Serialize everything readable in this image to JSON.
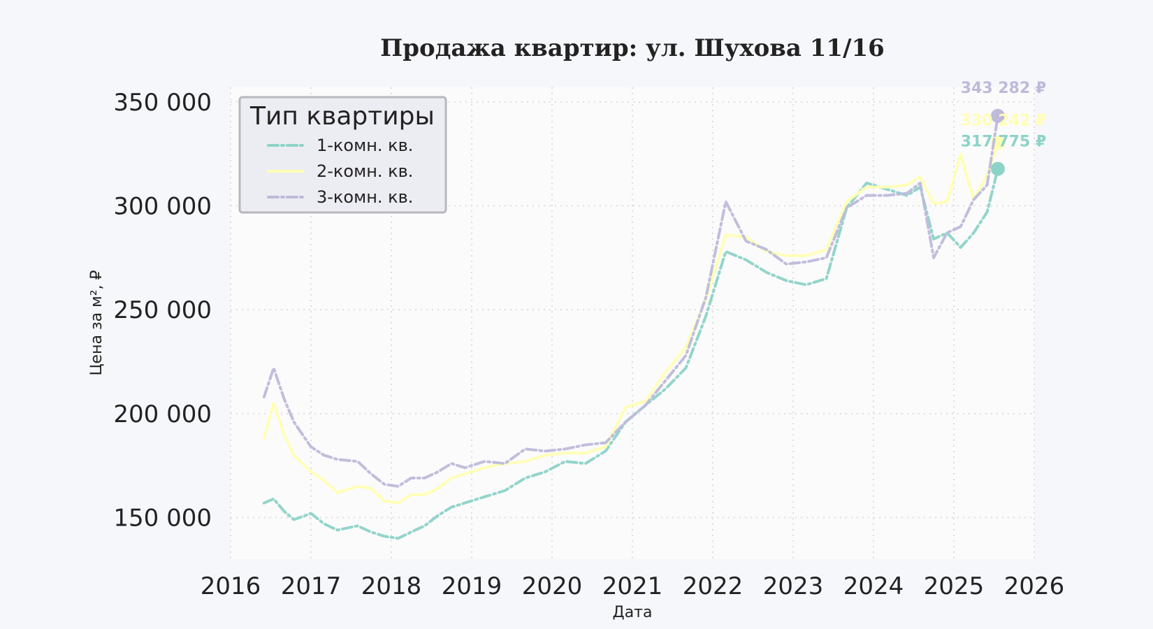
{
  "chart_data": {
    "type": "line",
    "title": "Продажа квартир: ул. Шухова 11/16",
    "xlabel": "Дата",
    "ylabel": "Цена за м², ₽",
    "xlim": [
      "2016-01-01",
      "2026-01-01"
    ],
    "ylim": [
      130000,
      357000
    ],
    "x_ticks": [
      "2016",
      "2017",
      "2018",
      "2019",
      "2020",
      "2021",
      "2022",
      "2023",
      "2024",
      "2025",
      "2026"
    ],
    "y_ticks": [
      150000,
      200000,
      250000,
      300000,
      350000
    ],
    "y_tick_labels": [
      "150 000",
      "200 000",
      "250 000",
      "300 000",
      "350 000"
    ],
    "grid": true,
    "legend": {
      "title": "Тип квартиры",
      "position": "top-left"
    },
    "series": [
      {
        "name": "1-комн. кв.",
        "color": "#8dd3c7",
        "dash": "dashdot",
        "final_label": "317 775 ₽",
        "points": [
          [
            "2016-06-01",
            157000
          ],
          [
            "2016-07-15",
            159000
          ],
          [
            "2016-09-01",
            153000
          ],
          [
            "2016-10-15",
            149000
          ],
          [
            "2017-01-01",
            152000
          ],
          [
            "2017-03-01",
            147000
          ],
          [
            "2017-05-01",
            144000
          ],
          [
            "2017-08-01",
            146000
          ],
          [
            "2017-10-01",
            143000
          ],
          [
            "2017-12-01",
            141000
          ],
          [
            "2018-02-01",
            140000
          ],
          [
            "2018-04-01",
            143000
          ],
          [
            "2018-06-01",
            146000
          ],
          [
            "2018-08-01",
            151000
          ],
          [
            "2018-10-01",
            155000
          ],
          [
            "2018-12-01",
            157000
          ],
          [
            "2019-03-01",
            160000
          ],
          [
            "2019-06-01",
            163000
          ],
          [
            "2019-09-01",
            169000
          ],
          [
            "2019-12-01",
            172000
          ],
          [
            "2020-03-01",
            177000
          ],
          [
            "2020-06-01",
            176000
          ],
          [
            "2020-09-01",
            182000
          ],
          [
            "2020-12-01",
            196000
          ],
          [
            "2021-03-01",
            204000
          ],
          [
            "2021-06-01",
            212000
          ],
          [
            "2021-09-01",
            222000
          ],
          [
            "2021-12-01",
            247000
          ],
          [
            "2022-03-01",
            278000
          ],
          [
            "2022-06-01",
            274000
          ],
          [
            "2022-09-01",
            268000
          ],
          [
            "2022-12-01",
            264000
          ],
          [
            "2023-03-01",
            262000
          ],
          [
            "2023-06-01",
            265000
          ],
          [
            "2023-09-01",
            299000
          ],
          [
            "2023-12-01",
            311000
          ],
          [
            "2024-03-01",
            308000
          ],
          [
            "2024-06-01",
            305000
          ],
          [
            "2024-08-01",
            309000
          ],
          [
            "2024-10-01",
            284000
          ],
          [
            "2024-12-01",
            287000
          ],
          [
            "2025-02-01",
            280000
          ],
          [
            "2025-04-01",
            287000
          ],
          [
            "2025-06-01",
            297000
          ],
          [
            "2025-07-20",
            317775
          ]
        ]
      },
      {
        "name": "2-комн. кв.",
        "color": "#ffffb3",
        "dash": "solid",
        "final_label": "330 242 ₽",
        "points": [
          [
            "2016-06-01",
            188000
          ],
          [
            "2016-07-15",
            205000
          ],
          [
            "2016-09-01",
            190000
          ],
          [
            "2016-10-15",
            180000
          ],
          [
            "2017-01-01",
            172000
          ],
          [
            "2017-03-01",
            168000
          ],
          [
            "2017-05-01",
            162000
          ],
          [
            "2017-08-01",
            165000
          ],
          [
            "2017-10-01",
            164000
          ],
          [
            "2017-12-01",
            158000
          ],
          [
            "2018-02-01",
            157000
          ],
          [
            "2018-04-01",
            161000
          ],
          [
            "2018-06-01",
            161000
          ],
          [
            "2018-08-01",
            164000
          ],
          [
            "2018-10-01",
            169000
          ],
          [
            "2018-12-01",
            171000
          ],
          [
            "2019-03-01",
            174000
          ],
          [
            "2019-06-01",
            176000
          ],
          [
            "2019-09-01",
            177000
          ],
          [
            "2019-12-01",
            180000
          ],
          [
            "2020-03-01",
            181000
          ],
          [
            "2020-06-01",
            181000
          ],
          [
            "2020-09-01",
            184000
          ],
          [
            "2020-12-01",
            203000
          ],
          [
            "2021-03-01",
            206000
          ],
          [
            "2021-06-01",
            220000
          ],
          [
            "2021-09-01",
            232000
          ],
          [
            "2021-12-01",
            255000
          ],
          [
            "2022-03-01",
            286000
          ],
          [
            "2022-06-01",
            285000
          ],
          [
            "2022-09-01",
            278000
          ],
          [
            "2022-12-01",
            276000
          ],
          [
            "2023-03-01",
            276000
          ],
          [
            "2023-06-01",
            279000
          ],
          [
            "2023-09-01",
            302000
          ],
          [
            "2023-12-01",
            309000
          ],
          [
            "2024-03-01",
            309000
          ],
          [
            "2024-06-01",
            310000
          ],
          [
            "2024-08-01",
            314000
          ],
          [
            "2024-10-01",
            301000
          ],
          [
            "2024-12-01",
            302000
          ],
          [
            "2025-02-01",
            325000
          ],
          [
            "2025-04-01",
            303000
          ],
          [
            "2025-06-01",
            315000
          ],
          [
            "2025-07-20",
            330242
          ]
        ]
      },
      {
        "name": "3-комн. кв.",
        "color": "#bebada",
        "dash": "dashdot",
        "final_label": "343 282 ₽",
        "points": [
          [
            "2016-06-01",
            208000
          ],
          [
            "2016-07-15",
            222000
          ],
          [
            "2016-09-01",
            207000
          ],
          [
            "2016-10-15",
            196000
          ],
          [
            "2017-01-01",
            184000
          ],
          [
            "2017-03-01",
            180000
          ],
          [
            "2017-05-01",
            178000
          ],
          [
            "2017-08-01",
            177000
          ],
          [
            "2017-10-01",
            171000
          ],
          [
            "2017-12-01",
            166000
          ],
          [
            "2018-02-01",
            165000
          ],
          [
            "2018-04-01",
            169000
          ],
          [
            "2018-06-01",
            169000
          ],
          [
            "2018-08-01",
            172000
          ],
          [
            "2018-10-01",
            176000
          ],
          [
            "2018-12-01",
            174000
          ],
          [
            "2019-03-01",
            177000
          ],
          [
            "2019-06-01",
            176000
          ],
          [
            "2019-09-01",
            183000
          ],
          [
            "2019-12-01",
            182000
          ],
          [
            "2020-03-01",
            183000
          ],
          [
            "2020-06-01",
            185000
          ],
          [
            "2020-09-01",
            186000
          ],
          [
            "2020-12-01",
            196000
          ],
          [
            "2021-03-01",
            204000
          ],
          [
            "2021-06-01",
            216000
          ],
          [
            "2021-09-01",
            228000
          ],
          [
            "2021-12-01",
            256000
          ],
          [
            "2022-03-01",
            302000
          ],
          [
            "2022-06-01",
            283000
          ],
          [
            "2022-09-01",
            279000
          ],
          [
            "2022-12-01",
            272000
          ],
          [
            "2023-03-01",
            273000
          ],
          [
            "2023-06-01",
            275000
          ],
          [
            "2023-09-01",
            299000
          ],
          [
            "2023-12-01",
            305000
          ],
          [
            "2024-03-01",
            305000
          ],
          [
            "2024-06-01",
            306000
          ],
          [
            "2024-08-01",
            311000
          ],
          [
            "2024-10-01",
            275000
          ],
          [
            "2024-12-01",
            287000
          ],
          [
            "2025-02-01",
            290000
          ],
          [
            "2025-04-01",
            303000
          ],
          [
            "2025-06-01",
            310000
          ],
          [
            "2025-07-20",
            343282
          ]
        ]
      }
    ]
  }
}
